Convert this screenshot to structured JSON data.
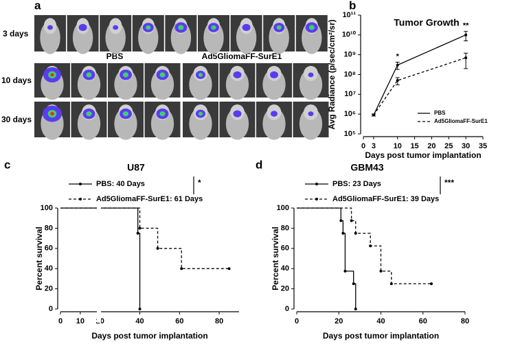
{
  "panel_labels": [
    "a",
    "b",
    "c",
    "d"
  ],
  "imaging": {
    "row_labels": [
      "3 days",
      "10 days",
      "30 days"
    ],
    "group_labels": [
      "PBS",
      "Ad5GliomaFF-SurE1"
    ]
  },
  "chart_data": [
    {
      "type": "line",
      "title": "Tumor Growth",
      "x_label": "Days post tumor implantation",
      "y_label": "Avg Radiance (p/sec/cm²/sr)",
      "xlim": [
        0,
        35
      ],
      "xticks": [
        0,
        3,
        10,
        15,
        20,
        25,
        30,
        35
      ],
      "ylim": [
        100000,
        100000000000
      ],
      "log_y": true,
      "yticks": [
        {
          "value": 100000,
          "label": "10⁵"
        },
        {
          "value": 1000000,
          "label": "10⁶"
        },
        {
          "value": 10000000,
          "label": "10⁷"
        },
        {
          "value": 100000000,
          "label": "10⁸"
        },
        {
          "value": 1000000000,
          "label": "10⁹"
        },
        {
          "value": 10000000000,
          "label": "10¹⁰"
        },
        {
          "value": 100000000000,
          "label": "10¹¹"
        }
      ],
      "legend": "lower right",
      "series": [
        {
          "name": "PBS",
          "color": "#000000",
          "line_style": "solid",
          "x": [
            3,
            10,
            30
          ],
          "values": [
            900000,
            300000000,
            10000000000
          ],
          "errors": [
            100000,
            120000000,
            5000000000
          ]
        },
        {
          "name": "Ad5GliomaFF-SurE1",
          "color": "#000000",
          "line_style": "dashed",
          "x": [
            3,
            10,
            30
          ],
          "values": [
            900000,
            50000000,
            700000000
          ],
          "errors": [
            100000,
            20000000,
            500000000
          ]
        }
      ],
      "annotations": [
        {
          "text": "*",
          "x": 10
        },
        {
          "text": "**",
          "x": 30
        }
      ]
    },
    {
      "type": "step",
      "title": "U87",
      "x_label": "Days post tumor implantation",
      "y_label": "Percent survival",
      "xlim": [
        0,
        90
      ],
      "xticks": [
        0,
        10,
        20,
        40,
        60,
        80
      ],
      "ylim": [
        0,
        100
      ],
      "yticks": [
        0,
        20,
        40,
        60,
        80,
        100
      ],
      "legend": "top",
      "significance": "*",
      "series": [
        {
          "name": "PBS: 40 Days",
          "color": "#000000",
          "line_style": "solid",
          "x": [
            0,
            39,
            40
          ],
          "values": [
            100,
            75,
            0
          ]
        },
        {
          "name": "Ad5GliomaFF-SurE1: 61 Days",
          "color": "#000000",
          "line_style": "dashed",
          "x": [
            0,
            40,
            49,
            61,
            85
          ],
          "values": [
            100,
            80,
            60,
            40,
            40
          ]
        }
      ]
    },
    {
      "type": "step",
      "title": "GBM43",
      "x_label": "Days post tumor implantation",
      "y_label": "Percent survival",
      "xlim": [
        0,
        80
      ],
      "xticks": [
        0,
        20,
        40,
        60,
        80
      ],
      "ylim": [
        0,
        100
      ],
      "yticks": [
        0,
        20,
        40,
        60,
        80,
        100
      ],
      "legend": "top",
      "significance": "***",
      "series": [
        {
          "name": "PBS: 23 Days",
          "color": "#000000",
          "line_style": "solid",
          "x": [
            0,
            21,
            22,
            23,
            27,
            28
          ],
          "values": [
            100,
            87.5,
            75,
            37.5,
            25,
            0
          ]
        },
        {
          "name": "Ad5GliomaFF-SurE1: 39 Days",
          "color": "#000000",
          "line_style": "dashed",
          "x": [
            0,
            26,
            28,
            35,
            40,
            45,
            64
          ],
          "values": [
            100,
            87.5,
            75,
            62.5,
            37.5,
            25,
            25
          ]
        }
      ]
    }
  ]
}
